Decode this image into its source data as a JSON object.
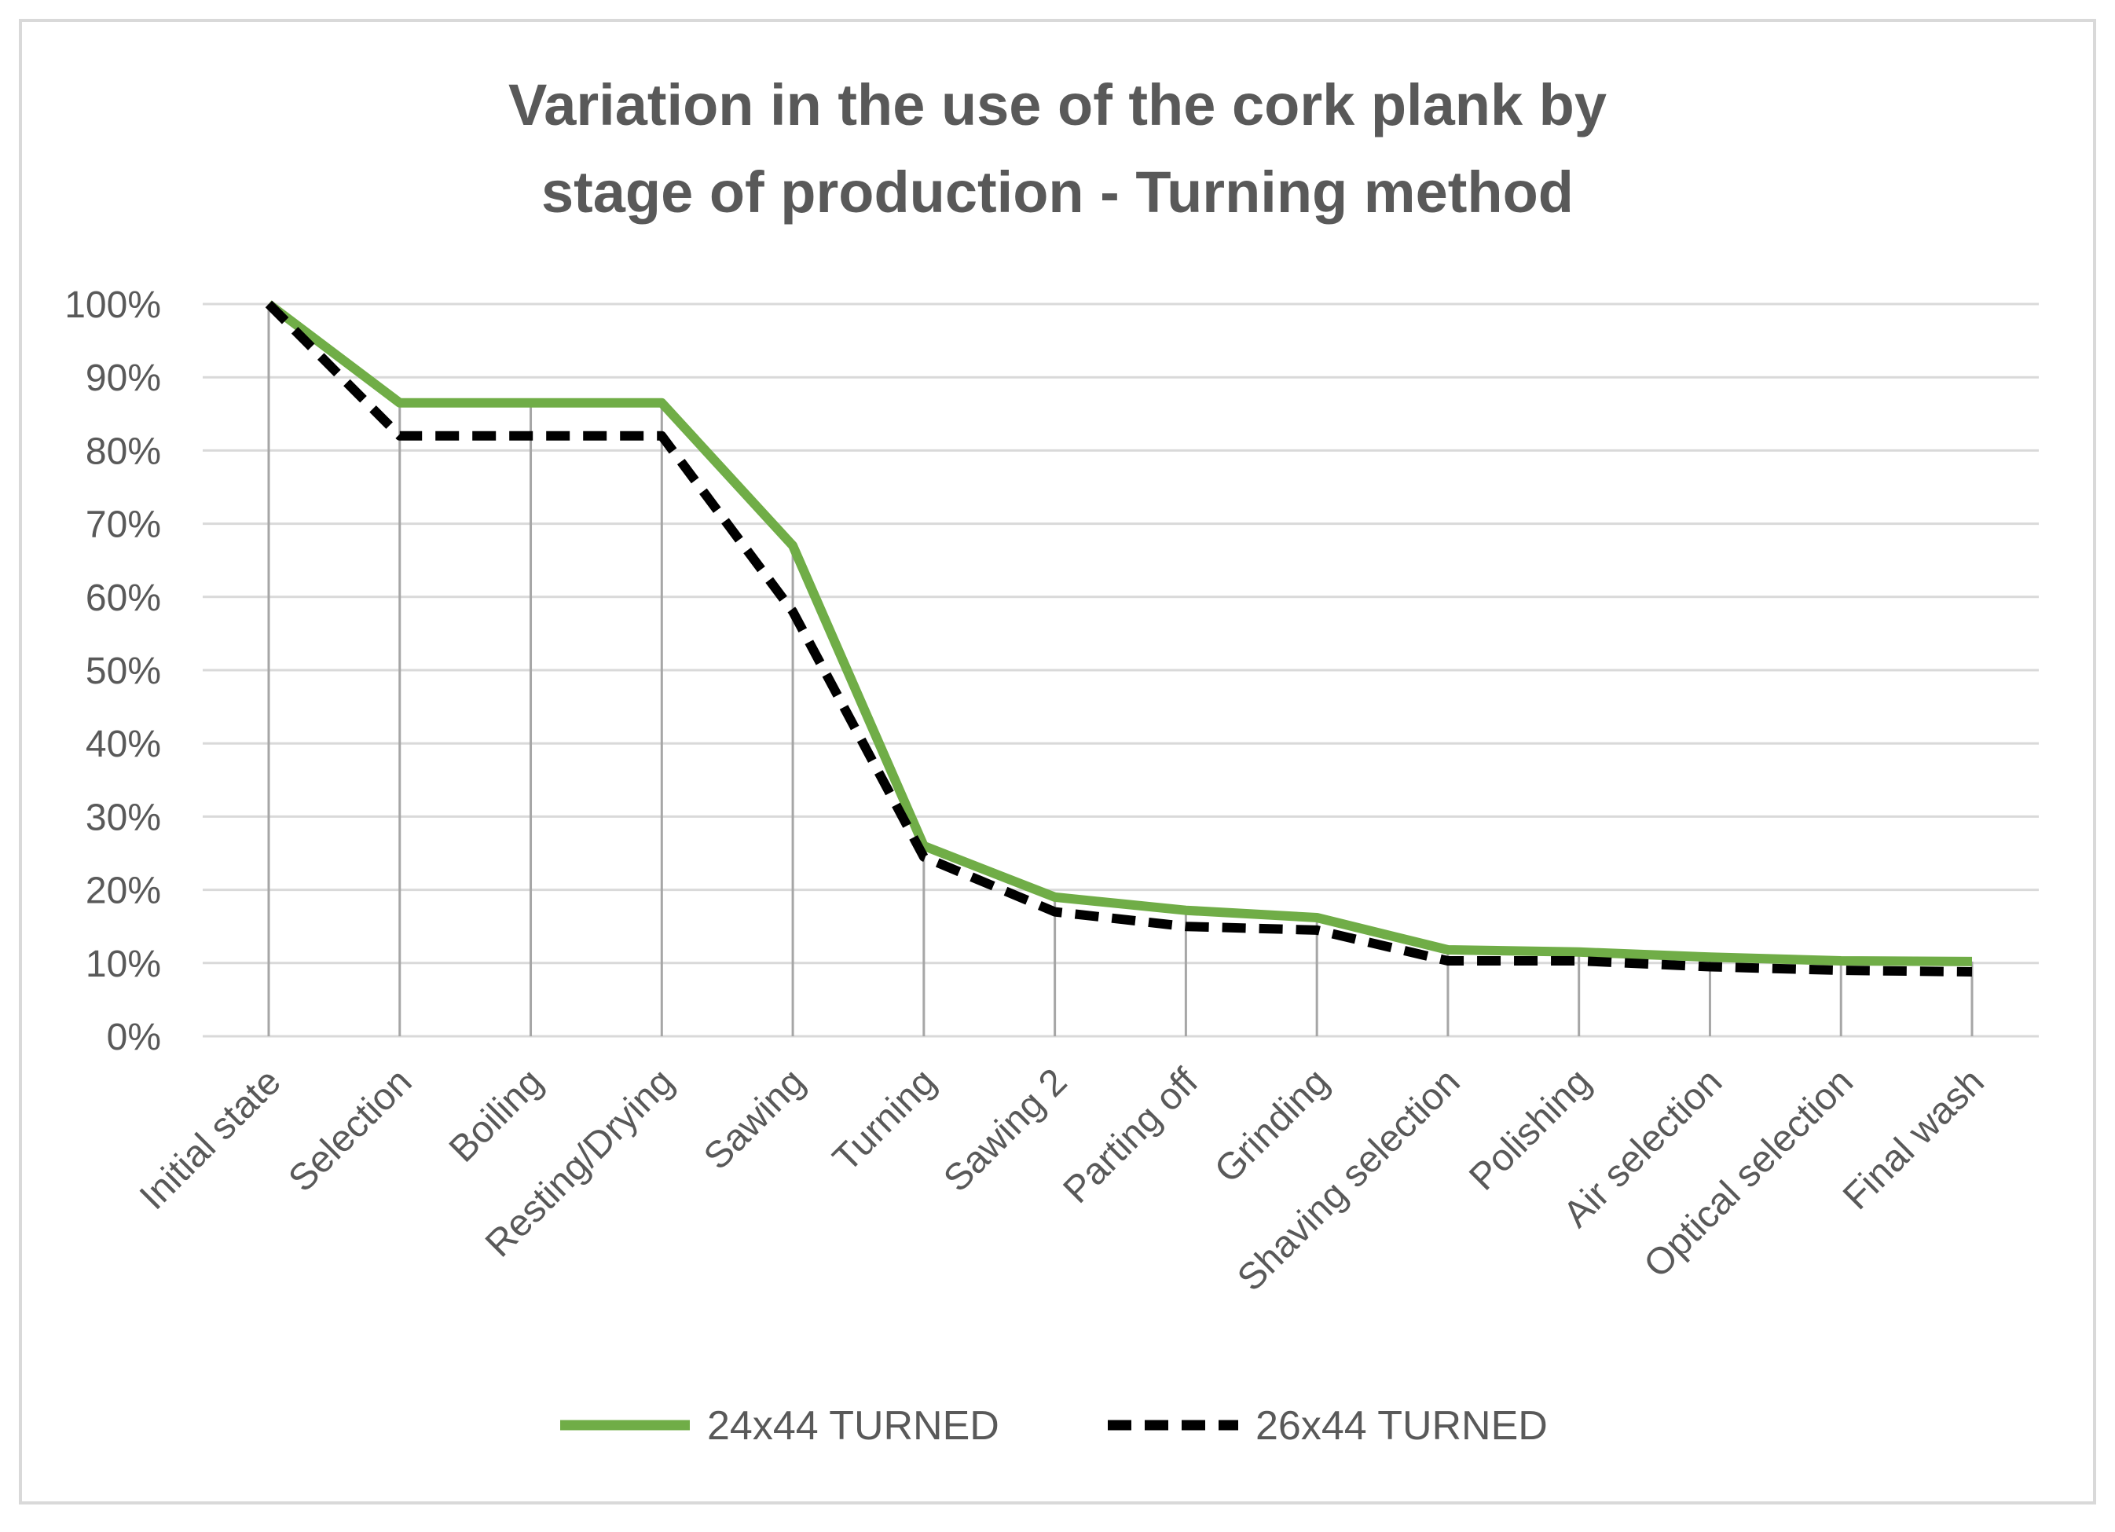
{
  "chart_data": {
    "type": "line",
    "title_lines": [
      "Variation in the use of the cork plank by",
      "stage of production - Turning method"
    ],
    "categories": [
      "Initial state",
      "Selection",
      "Boiling",
      "Resting/Drying",
      "Sawing",
      "Turning",
      "Sawing 2",
      "Parting off",
      "Grinding",
      "Shaving selection",
      "Polishing",
      "Air selection",
      "Optical selection",
      "Final wash"
    ],
    "yticks": [
      "0%",
      "10%",
      "20%",
      "30%",
      "40%",
      "50%",
      "60%",
      "70%",
      "80%",
      "90%",
      "100%"
    ],
    "ylim": [
      0,
      100
    ],
    "grid": true,
    "drop_lines": true,
    "legend_position": "bottom",
    "series": [
      {
        "name": "24x44 TURNED",
        "color": "#70ad47",
        "style": "solid",
        "values": [
          100,
          86.5,
          86.5,
          86.5,
          67,
          26,
          19,
          17.2,
          16.2,
          11.8,
          11.5,
          10.8,
          10.3,
          10.2
        ]
      },
      {
        "name": "26x44 TURNED",
        "color": "#000000",
        "style": "dashed",
        "values": [
          100,
          82,
          82,
          82,
          58,
          24.5,
          17,
          15,
          14.5,
          10.3,
          10.3,
          9.5,
          9,
          8.8
        ]
      }
    ],
    "colors": {
      "grid": "#d9d9d9",
      "drop_line": "#a6a6a6",
      "axis": "#d9d9d9",
      "text": "#595959",
      "frame": "#d9d9d9"
    }
  }
}
